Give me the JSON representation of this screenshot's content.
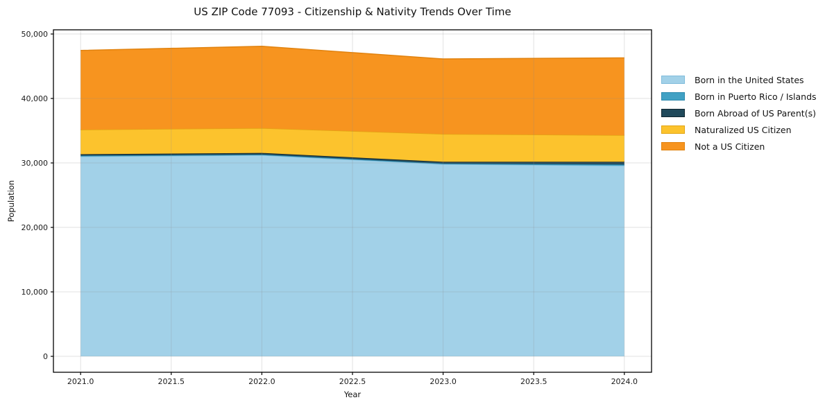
{
  "title": "US ZIP Code 77093 - Citizenship & Nativity Trends Over Time",
  "chart_data": {
    "type": "area",
    "stacked": true,
    "title": "US ZIP Code 77093 - Citizenship & Nativity Trends Over Time",
    "xlabel": "Year",
    "ylabel": "Population",
    "x": [
      2021,
      2022,
      2023,
      2024
    ],
    "series": [
      {
        "name": "Born in the United States",
        "color": "#a2d1e8",
        "edge": "#7fbcdb",
        "values": [
          31000,
          31200,
          29800,
          29570
        ]
      },
      {
        "name": "Born in Puerto Rico / Islands",
        "color": "#41a1c4",
        "edge": "#2b89ad",
        "values": [
          120,
          100,
          100,
          180
        ]
      },
      {
        "name": "Born Abroad of US Parent(s)",
        "color": "#20495b",
        "edge": "#0f242e",
        "values": [
          230,
          250,
          280,
          430
        ]
      },
      {
        "name": "Naturalized US Citizen",
        "color": "#fcc32d",
        "edge": "#e2a513",
        "values": [
          3800,
          3850,
          4300,
          4120
        ]
      },
      {
        "name": "Not a US Citizen",
        "color": "#f7941f",
        "edge": "#e1820e",
        "values": [
          12300,
          12700,
          11650,
          12000
        ]
      }
    ],
    "totals": [
      47450,
      48100,
      46130,
      46300
    ],
    "x_ticks": [
      "2021.0",
      "2021.5",
      "2022.0",
      "2022.5",
      "2023.0",
      "2023.5",
      "2024.0"
    ],
    "x_tick_values": [
      2021,
      2021.5,
      2022,
      2022.5,
      2023,
      2023.5,
      2024
    ],
    "y_ticks": [
      "0",
      "10,000",
      "20,000",
      "30,000",
      "40,000",
      "50,000"
    ],
    "y_tick_values": [
      0,
      10000,
      20000,
      30000,
      40000,
      50000
    ],
    "xlim": [
      2020.85,
      2024.15
    ],
    "ylim": [
      -2470,
      50650
    ],
    "grid": true,
    "legend_position": "right-outside",
    "frame_color": "#000000",
    "grid_color": "rgba(140,140,140,0.25)",
    "tick_text_color": "#1a1a1a"
  }
}
